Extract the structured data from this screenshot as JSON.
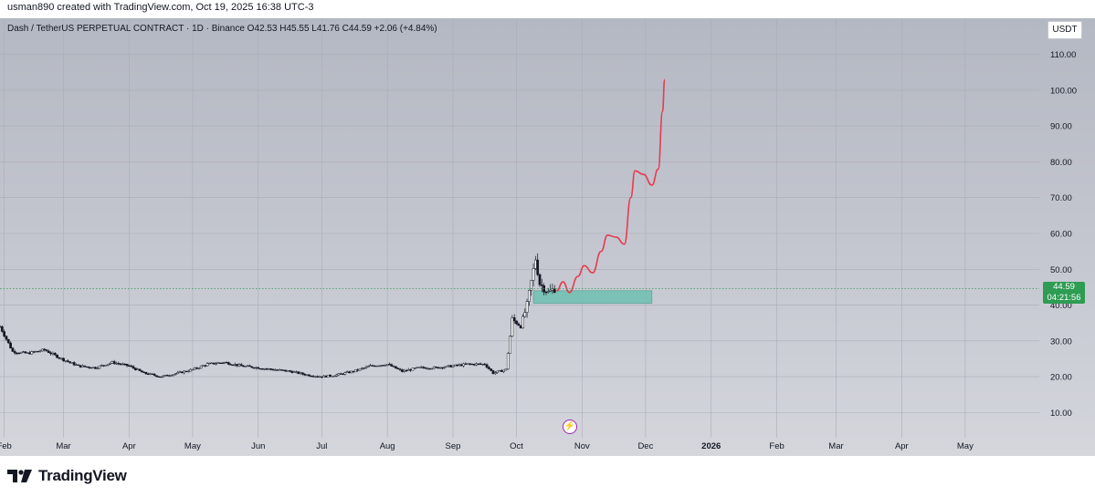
{
  "credit": "usman890 created with TradingView.com, Oct 19, 2025 16:38 UTC-3",
  "header": "Dash / TetherUS PERPETUAL CONTRACT · 1D · Binance  O42.53  H45.55  L41.76  C44.59  +2.06 (+4.84%)",
  "currency": "USDT",
  "price_badge": {
    "price": "44.59",
    "countdown": "04:21:56",
    "color": "#2e9c53"
  },
  "footer": {
    "logo_text": "TradingView"
  },
  "chart_data": {
    "type": "candlestick",
    "symbol": "Dash / TetherUS PERPETUAL CONTRACT",
    "timeframe": "1D",
    "exchange": "Binance",
    "ohlc_last": {
      "open": 42.53,
      "high": 45.55,
      "low": 41.76,
      "close": 44.59,
      "change": 2.06,
      "change_pct": 4.84
    },
    "ylim": [
      5,
      115
    ],
    "yticks": [
      10,
      20,
      30,
      40,
      50,
      60,
      70,
      80,
      90,
      100,
      110
    ],
    "ytick_labels": [
      "10.00",
      "20.00",
      "30.00",
      "40.00",
      "50.00",
      "60.00",
      "70.00",
      "80.00",
      "90.00",
      "100.00",
      "110.00"
    ],
    "xlim": [
      "2025-01-30",
      "2026-06-05"
    ],
    "xticks": [
      {
        "date": "2025-02-01",
        "label": "Feb"
      },
      {
        "date": "2025-03-01",
        "label": "Mar"
      },
      {
        "date": "2025-04-01",
        "label": "Apr"
      },
      {
        "date": "2025-05-01",
        "label": "May"
      },
      {
        "date": "2025-06-01",
        "label": "Jun"
      },
      {
        "date": "2025-07-01",
        "label": "Jul"
      },
      {
        "date": "2025-08-01",
        "label": "Aug"
      },
      {
        "date": "2025-09-01",
        "label": "Sep"
      },
      {
        "date": "2025-10-01",
        "label": "Oct"
      },
      {
        "date": "2025-11-01",
        "label": "Nov"
      },
      {
        "date": "2025-12-01",
        "label": "Dec"
      },
      {
        "date": "2026-01-01",
        "label": "2026"
      },
      {
        "date": "2026-02-01",
        "label": "Feb"
      },
      {
        "date": "2026-03-01",
        "label": "Mar"
      },
      {
        "date": "2026-04-01",
        "label": "Apr"
      },
      {
        "date": "2026-05-01",
        "label": "May"
      }
    ],
    "grid": true,
    "price_line": 44.59,
    "closes": [
      {
        "date": "2025-01-30",
        "close": 34
      },
      {
        "date": "2025-02-05",
        "close": 27
      },
      {
        "date": "2025-02-12",
        "close": 26.5
      },
      {
        "date": "2025-02-20",
        "close": 27.5
      },
      {
        "date": "2025-02-28",
        "close": 25
      },
      {
        "date": "2025-03-08",
        "close": 23
      },
      {
        "date": "2025-03-16",
        "close": 22.5
      },
      {
        "date": "2025-03-24",
        "close": 24
      },
      {
        "date": "2025-04-01",
        "close": 23
      },
      {
        "date": "2025-04-08",
        "close": 21
      },
      {
        "date": "2025-04-16",
        "close": 20
      },
      {
        "date": "2025-04-24",
        "close": 21
      },
      {
        "date": "2025-05-01",
        "close": 22
      },
      {
        "date": "2025-05-08",
        "close": 23.5
      },
      {
        "date": "2025-05-16",
        "close": 24
      },
      {
        "date": "2025-05-24",
        "close": 23
      },
      {
        "date": "2025-06-01",
        "close": 22.5
      },
      {
        "date": "2025-06-08",
        "close": 22
      },
      {
        "date": "2025-06-16",
        "close": 21.5
      },
      {
        "date": "2025-06-24",
        "close": 20.5
      },
      {
        "date": "2025-07-01",
        "close": 20
      },
      {
        "date": "2025-07-08",
        "close": 20.5
      },
      {
        "date": "2025-07-16",
        "close": 21.5
      },
      {
        "date": "2025-07-24",
        "close": 23
      },
      {
        "date": "2025-08-01",
        "close": 23.5
      },
      {
        "date": "2025-08-08",
        "close": 21.5
      },
      {
        "date": "2025-08-16",
        "close": 22.5
      },
      {
        "date": "2025-08-24",
        "close": 22.5
      },
      {
        "date": "2025-09-01",
        "close": 23
      },
      {
        "date": "2025-09-08",
        "close": 23.5
      },
      {
        "date": "2025-09-16",
        "close": 23.5
      },
      {
        "date": "2025-09-20",
        "close": 21
      },
      {
        "date": "2025-09-26",
        "close": 22
      },
      {
        "date": "2025-09-29",
        "close": 36
      },
      {
        "date": "2025-10-03",
        "close": 34
      },
      {
        "date": "2025-10-06",
        "close": 40
      },
      {
        "date": "2025-10-10",
        "close": 53
      },
      {
        "date": "2025-10-12",
        "close": 46
      },
      {
        "date": "2025-10-16",
        "close": 43.5
      },
      {
        "date": "2025-10-19",
        "close": 44.59
      }
    ],
    "annotations": {
      "support_zone": {
        "from": "2025-10-09",
        "to": "2025-12-04",
        "low": 40.5,
        "high": 44,
        "color": "#6fbfb2"
      },
      "projection_path": [
        {
          "date": "2025-10-20",
          "value": 44
        },
        {
          "date": "2025-10-23",
          "value": 46.5
        },
        {
          "date": "2025-10-26",
          "value": 43.5
        },
        {
          "date": "2025-10-30",
          "value": 48
        },
        {
          "date": "2025-11-02",
          "value": 51
        },
        {
          "date": "2025-11-06",
          "value": 49
        },
        {
          "date": "2025-11-10",
          "value": 55
        },
        {
          "date": "2025-11-13",
          "value": 59.5
        },
        {
          "date": "2025-11-17",
          "value": 59
        },
        {
          "date": "2025-11-21",
          "value": 57
        },
        {
          "date": "2025-11-24",
          "value": 70
        },
        {
          "date": "2025-11-26",
          "value": 77.5
        },
        {
          "date": "2025-11-30",
          "value": 76.5
        },
        {
          "date": "2025-12-04",
          "value": 73.5
        },
        {
          "date": "2025-12-07",
          "value": 78
        },
        {
          "date": "2025-12-09",
          "value": 94
        },
        {
          "date": "2025-12-10",
          "value": 103
        }
      ],
      "projection_color": "#e83a4e"
    }
  }
}
